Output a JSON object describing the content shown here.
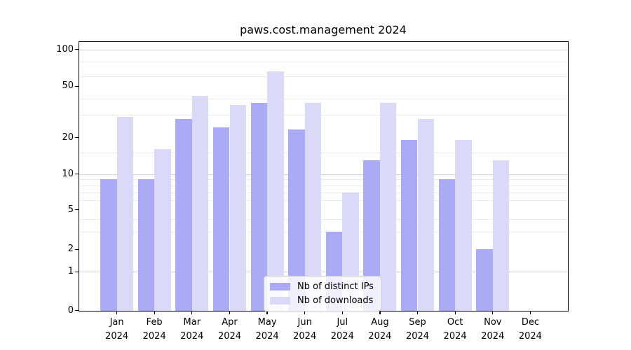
{
  "chart_data": {
    "type": "bar",
    "title": "paws.cost.management 2024",
    "categories": [
      "Jan",
      "Feb",
      "Mar",
      "Apr",
      "May",
      "Jun",
      "Jul",
      "Aug",
      "Sep",
      "Oct",
      "Nov",
      "Dec"
    ],
    "year_label": "2024",
    "series": [
      {
        "name": "Nb of distinct IPs",
        "color": "#aaaaf5",
        "values": [
          9,
          9,
          28,
          24,
          37,
          23,
          3,
          13,
          19,
          9,
          2,
          0
        ]
      },
      {
        "name": "Nb of downloads",
        "color": "#dadaf8",
        "values": [
          29,
          16,
          42,
          36,
          66,
          37,
          7,
          37,
          28,
          19,
          13,
          0
        ]
      }
    ],
    "y_axis": {
      "scale": "symlog",
      "tick_values": [
        0,
        1,
        2,
        5,
        10,
        20,
        50,
        100
      ],
      "tick_labels": [
        "0",
        "1",
        "2",
        "5",
        "10",
        "20",
        "50",
        "100"
      ],
      "range": [
        0,
        116
      ]
    },
    "major_gridlines": [
      1,
      10,
      100
    ],
    "minor_gridlines": [
      3,
      4,
      6,
      7,
      8,
      9,
      15,
      30,
      40,
      60,
      80
    ],
    "grid": "on",
    "legend": {
      "position": "lower-center"
    },
    "colors": {
      "background": "#ffffff",
      "axis": "#000000",
      "major_grid": "#d2d2d2",
      "minor_grid": "#ebebeb"
    }
  }
}
